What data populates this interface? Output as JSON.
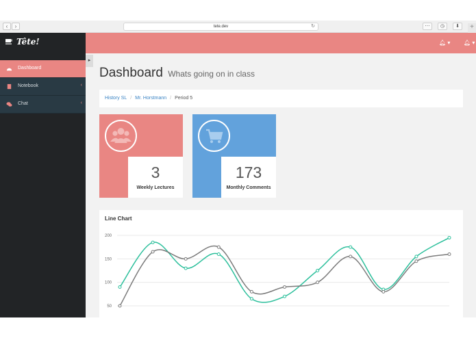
{
  "browser": {
    "url": "tete.dev",
    "back_icon": "chevron-left-icon",
    "forward_icon": "chevron-right-icon"
  },
  "sidebar": {
    "brand": "Tête!",
    "items": [
      {
        "label": "Dashboard",
        "icon": "dashboard-icon",
        "active": true
      },
      {
        "label": "Notebook",
        "icon": "book-icon",
        "active": false
      },
      {
        "label": "Chat",
        "icon": "chat-icon",
        "active": false
      }
    ]
  },
  "header": {
    "title": "Dashboard",
    "subtitle": "Whats going on in class"
  },
  "breadcrumb": {
    "items": [
      "History SL",
      "Mr. Horstmann",
      "Period 5"
    ]
  },
  "tiles": [
    {
      "value": "3",
      "label": "Weekly Lectures",
      "color": "#e98683",
      "icon": "users-icon"
    },
    {
      "value": "173",
      "label": "Monthly Comments",
      "color": "#62a2dc",
      "icon": "cart-icon"
    }
  ],
  "colors": {
    "accent": "#e98683",
    "sidebar_bg": "#222426",
    "sidebar_item_bg": "#293a44",
    "tile_blue": "#62a2dc",
    "series_teal": "#2bbf9b",
    "series_gray": "#7a7a7a"
  },
  "chart_data": {
    "type": "line",
    "title": "Line Chart",
    "x": [
      0,
      1,
      2,
      3,
      4,
      5,
      6,
      7,
      8,
      9,
      10
    ],
    "ylim": [
      40,
      210
    ],
    "yticks": [
      50,
      100,
      150,
      200
    ],
    "grid": true,
    "series": [
      {
        "color": "#2bbf9b",
        "values": [
          90,
          185,
          130,
          160,
          65,
          70,
          125,
          175,
          85,
          155,
          195
        ]
      },
      {
        "color": "#7a7a7a",
        "values": [
          50,
          165,
          150,
          175,
          80,
          90,
          100,
          155,
          80,
          145,
          160
        ]
      }
    ]
  }
}
